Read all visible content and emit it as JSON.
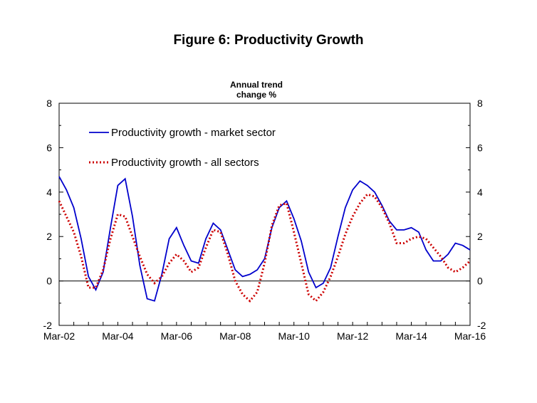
{
  "page": {
    "title": "Figure 6: Productivity Growth"
  },
  "chart_data": {
    "type": "line",
    "title": "Figure 6: Productivity Growth",
    "unit_label_line1": "Annual trend",
    "unit_label_line2": "change %",
    "x_tick_labels": [
      "Mar-02",
      "Mar-04",
      "Mar-06",
      "Mar-08",
      "Mar-10",
      "Mar-12",
      "Mar-14",
      "Mar-16"
    ],
    "x_tick_positions": [
      0,
      8,
      16,
      24,
      32,
      40,
      48,
      56
    ],
    "ylim": [
      -2,
      8
    ],
    "y_ticks": [
      -2,
      0,
      2,
      4,
      6,
      8
    ],
    "grid": false,
    "legend_position": "top-left",
    "x": [
      0,
      1,
      2,
      3,
      4,
      5,
      6,
      7,
      8,
      9,
      10,
      11,
      12,
      13,
      14,
      15,
      16,
      17,
      18,
      19,
      20,
      21,
      22,
      23,
      24,
      25,
      26,
      27,
      28,
      29,
      30,
      31,
      32,
      33,
      34,
      35,
      36,
      37,
      38,
      39,
      40,
      41,
      42,
      43,
      44,
      45,
      46,
      47,
      48,
      49,
      50,
      51,
      52,
      53,
      54,
      55,
      56
    ],
    "series": [
      {
        "name": "Productivity growth - market sector",
        "color": "#0000cc",
        "style": "solid",
        "values": [
          4.7,
          4.1,
          3.3,
          1.9,
          0.2,
          -0.4,
          0.4,
          2.4,
          4.3,
          4.6,
          2.9,
          0.7,
          -0.8,
          -0.9,
          0.3,
          1.9,
          2.4,
          1.6,
          0.9,
          0.8,
          1.9,
          2.6,
          2.3,
          1.4,
          0.5,
          0.2,
          0.3,
          0.5,
          1.0,
          2.4,
          3.3,
          3.6,
          2.8,
          1.8,
          0.4,
          -0.3,
          -0.1,
          0.6,
          2.0,
          3.3,
          4.1,
          4.5,
          4.3,
          4.0,
          3.4,
          2.7,
          2.3,
          2.3,
          2.4,
          2.2,
          1.4,
          0.9,
          0.9,
          1.2,
          1.7,
          1.6,
          1.4
        ]
      },
      {
        "name": "Productivity growth - all sectors",
        "color": "#cc0000",
        "style": "dotted",
        "values": [
          3.6,
          2.9,
          2.2,
          1.1,
          -0.3,
          -0.3,
          0.5,
          1.9,
          3.0,
          2.9,
          2.0,
          1.1,
          0.3,
          -0.1,
          0.2,
          0.8,
          1.2,
          0.9,
          0.4,
          0.6,
          1.5,
          2.3,
          2.2,
          1.2,
          0.0,
          -0.6,
          -0.9,
          -0.5,
          0.8,
          2.5,
          3.4,
          3.5,
          2.2,
          0.8,
          -0.6,
          -0.9,
          -0.5,
          0.2,
          1.1,
          2.1,
          2.9,
          3.5,
          3.9,
          3.8,
          3.3,
          2.6,
          1.7,
          1.7,
          1.9,
          2.0,
          1.9,
          1.5,
          1.1,
          0.6,
          0.4,
          0.6,
          0.9
        ]
      }
    ]
  }
}
